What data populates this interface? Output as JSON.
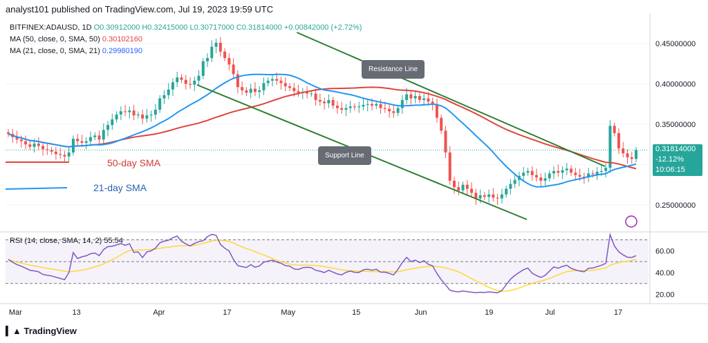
{
  "header": {
    "publisher": "analyst101 published on TradingView.com, Jul 19, 2023 19:59 UTC"
  },
  "legend": {
    "symbol": "BITFINEX:ADAUSD, 1D",
    "ohlc": "O0.30912000 H0.32415000 L0.30717000 C0.31814000 +0.00842000 (+2.72%)",
    "ma50_label": "MA (50, close, 0, SMA, 50)",
    "ma50_value": "0.30102160",
    "ma21_label": "MA (21, close, 0, SMA, 21)",
    "ma21_value": "0.29980190"
  },
  "annotations": {
    "sma50": "50-day SMA",
    "sma21": "21-day SMA",
    "resistance": "Resistance Line",
    "support": "Support Line"
  },
  "price_tag": {
    "price": "0.31814000",
    "change": "-12.12%",
    "countdown": "10:06:15"
  },
  "rsi_legend": "RSI (14, close, SMA, 14, 2)  55.54",
  "footer": {
    "brand": "TradingView"
  },
  "colors": {
    "up": "#26a69a",
    "down": "#ef5350",
    "sma50": "#e0433c",
    "sma21": "#2196f3",
    "trend": "#2e7d32",
    "rsi": "#7e57c2",
    "rsi_ma": "#fdd835"
  },
  "chart_data": {
    "type": "candlestick",
    "title": "BITFINEX:ADAUSD, 1D",
    "y_ticks": [
      "0.45000000",
      "0.40000000",
      "0.35000000",
      "0.30000000",
      "0.25000000"
    ],
    "y_tick_values": [
      0.45,
      0.4,
      0.35,
      0.3,
      0.25
    ],
    "ylim": [
      0.22,
      0.48
    ],
    "x_ticks": [
      "Mar",
      "13",
      "Apr",
      "17",
      "May",
      "15",
      "Jun",
      "19",
      "Jul",
      "17"
    ],
    "closes": [
      0.338,
      0.334,
      0.331,
      0.329,
      0.325,
      0.322,
      0.326,
      0.323,
      0.319,
      0.318,
      0.316,
      0.313,
      0.312,
      0.31,
      0.315,
      0.332,
      0.329,
      0.327,
      0.329,
      0.334,
      0.336,
      0.331,
      0.343,
      0.349,
      0.356,
      0.362,
      0.366,
      0.365,
      0.367,
      0.361,
      0.362,
      0.357,
      0.361,
      0.362,
      0.368,
      0.382,
      0.386,
      0.393,
      0.402,
      0.408,
      0.405,
      0.4,
      0.399,
      0.404,
      0.41,
      0.428,
      0.432,
      0.446,
      0.451,
      0.44,
      0.432,
      0.424,
      0.412,
      0.396,
      0.392,
      0.389,
      0.394,
      0.39,
      0.392,
      0.401,
      0.404,
      0.406,
      0.404,
      0.401,
      0.397,
      0.395,
      0.391,
      0.389,
      0.39,
      0.388,
      0.388,
      0.38,
      0.378,
      0.376,
      0.38,
      0.373,
      0.37,
      0.368,
      0.37,
      0.372,
      0.371,
      0.372,
      0.374,
      0.375,
      0.373,
      0.375,
      0.37,
      0.369,
      0.366,
      0.364,
      0.37,
      0.38,
      0.387,
      0.382,
      0.385,
      0.38,
      0.382,
      0.378,
      0.375,
      0.358,
      0.342,
      0.315,
      0.28,
      0.272,
      0.268,
      0.275,
      0.27,
      0.265,
      0.258,
      0.262,
      0.26,
      0.263,
      0.259,
      0.258,
      0.263,
      0.27,
      0.276,
      0.281,
      0.286,
      0.29,
      0.292,
      0.287,
      0.284,
      0.28,
      0.283,
      0.289,
      0.292,
      0.29,
      0.293,
      0.295,
      0.29,
      0.287,
      0.285,
      0.284,
      0.289,
      0.288,
      0.291,
      0.292,
      0.296,
      0.348,
      0.339,
      0.32,
      0.314,
      0.309,
      0.307,
      0.318
    ],
    "rsi_ticks": [
      "60.00",
      "40.00",
      "20.00"
    ],
    "rsi_tick_values": [
      60,
      40,
      20
    ],
    "rsi_ylim": [
      14,
      76
    ],
    "rsi_bands": [
      70,
      50,
      30
    ],
    "rsi_values": [
      52.0,
      49.4,
      47.3,
      45.8,
      44.0,
      42.1,
      41.5,
      40.7,
      38.3,
      37.5,
      36.9,
      35.7,
      34.6,
      33.5,
      40.1,
      58.2,
      52.8,
      54.5,
      55.4,
      57.3,
      57.9,
      55.5,
      61.1,
      63.7,
      64.2,
      65.3,
      66.6,
      64.9,
      66.4,
      58.5,
      58.9,
      53.7,
      58.9,
      59.9,
      62.4,
      67.3,
      68.7,
      69.6,
      71.9,
      73.5,
      68.7,
      66.3,
      64.4,
      66.7,
      68.3,
      69.2,
      72.9,
      75.0,
      74.1,
      65.8,
      62.3,
      59.7,
      52.0,
      46.4,
      45.4,
      44.6,
      47.2,
      44.9,
      46.1,
      49.5,
      50.5,
      51.3,
      49.6,
      48.5,
      46.3,
      45.9,
      43.3,
      42.8,
      44.4,
      44.8,
      44.4,
      42.1,
      41.2,
      40.0,
      42.1,
      40.4,
      38.7,
      37.9,
      40.2,
      41.3,
      40.2,
      40.1,
      42.5,
      43.1,
      42.1,
      43.0,
      40.3,
      40.3,
      39.2,
      37.8,
      43.0,
      49.1,
      53.9,
      50.0,
      51.4,
      49.1,
      50.9,
      47.6,
      46.2,
      39.2,
      33.4,
      28.7,
      23.8,
      22.7,
      22.3,
      23.1,
      22.5,
      22.0,
      21.6,
      21.9,
      21.8,
      22.2,
      21.9,
      21.4,
      23.6,
      28.8,
      33.9,
      37.4,
      40.1,
      42.6,
      44.1,
      39.4,
      37.2,
      35.6,
      37.4,
      41.4,
      45.1,
      44.0,
      45.6,
      46.7,
      43.8,
      42.5,
      41.3,
      40.7,
      43.9,
      44.2,
      45.4,
      46.7,
      48.4,
      74.8,
      64.3,
      59.0,
      56.2,
      54.1,
      53.8,
      55.5
    ]
  }
}
